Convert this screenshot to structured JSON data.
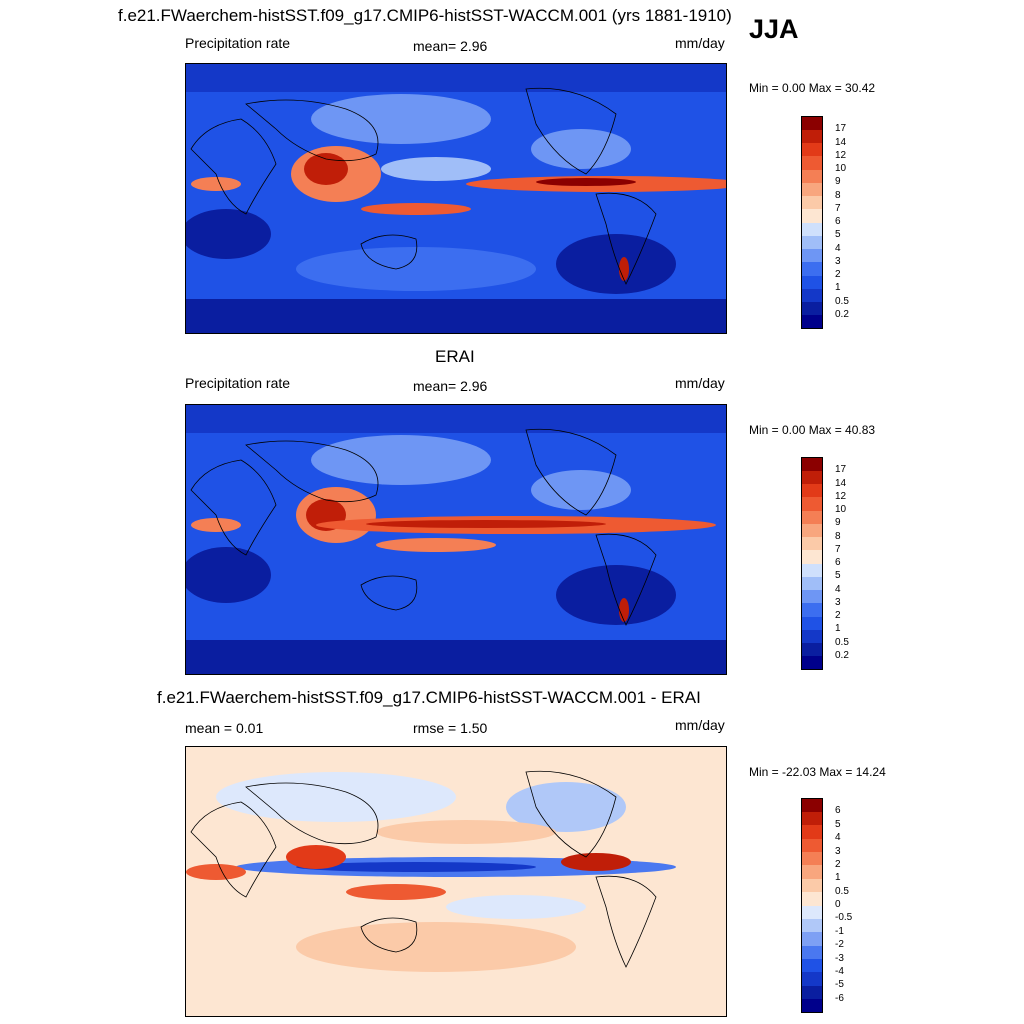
{
  "figure": {
    "season": "JJA",
    "panel1_title": "f.e21.FWaerchem-histSST.f09_g17.CMIP6-histSST-WACCM.001 (yrs 1881-1910)",
    "panel2_title": "ERAI",
    "panel3_title": "f.e21.FWaerchem-histSST.f09_g17.CMIP6-histSST-WACCM.001 - ERAI"
  },
  "colors": {
    "precip_scale": [
      "#00008b",
      "#0a1ea0",
      "#1438c8",
      "#1f52e6",
      "#3c6ef0",
      "#6e96f4",
      "#a0bef8",
      "#cfe0fc",
      "#fde6d2",
      "#fbcaa8",
      "#f8a67e",
      "#f47f55",
      "#ee5a32",
      "#e23a18",
      "#c01e08",
      "#8b0000"
    ],
    "diff_scale": [
      "#00008b",
      "#0a1ea0",
      "#1438c8",
      "#1f52e6",
      "#4a78f0",
      "#7ea0f4",
      "#b0c8f8",
      "#dde8fc",
      "#fde6d2",
      "#fbcaa8",
      "#f8a67e",
      "#f47f55",
      "#ee5a32",
      "#e23a18",
      "#c01e08",
      "#8b0000"
    ]
  },
  "chart_data": [
    {
      "type": "heatmap",
      "title": "f.e21.FWaerchem-histSST.f09_g17.CMIP6-histSST-WACCM.001 (yrs 1881-1910)",
      "left_label": "Precipitation rate",
      "center_label": "mean=   2.96",
      "right_label": "mm/day",
      "mean": 2.96,
      "min_max": "Min =   0.00 Max =  30.42",
      "min": 0.0,
      "max": 30.42,
      "levels": [
        "0.2",
        "0.5",
        "1",
        "2",
        "3",
        "4",
        "5",
        "6",
        "7",
        "8",
        "9",
        "10",
        "12",
        "14",
        "17"
      ]
    },
    {
      "type": "heatmap",
      "title": "ERAI",
      "left_label": "Precipitation rate",
      "center_label": "mean=   2.96",
      "right_label": "mm/day",
      "mean": 2.96,
      "min_max": "Min =   0.00 Max =  40.83",
      "min": 0.0,
      "max": 40.83,
      "levels": [
        "0.2",
        "0.5",
        "1",
        "2",
        "3",
        "4",
        "5",
        "6",
        "7",
        "8",
        "9",
        "10",
        "12",
        "14",
        "17"
      ]
    },
    {
      "type": "heatmap",
      "title": "f.e21.FWaerchem-histSST.f09_g17.CMIP6-histSST-WACCM.001 - ERAI",
      "left_label": "mean =   0.01",
      "center_label": "rmse =   1.50",
      "right_label": "mm/day",
      "mean": 0.01,
      "rmse": 1.5,
      "min_max": "Min = -22.03 Max =  14.24",
      "min": -22.03,
      "max": 14.24,
      "levels": [
        "-6",
        "-5",
        "-4",
        "-3",
        "-2",
        "-1",
        "-0.5",
        "0",
        "0.5",
        "1",
        "2",
        "3",
        "4",
        "5",
        "6"
      ]
    }
  ]
}
